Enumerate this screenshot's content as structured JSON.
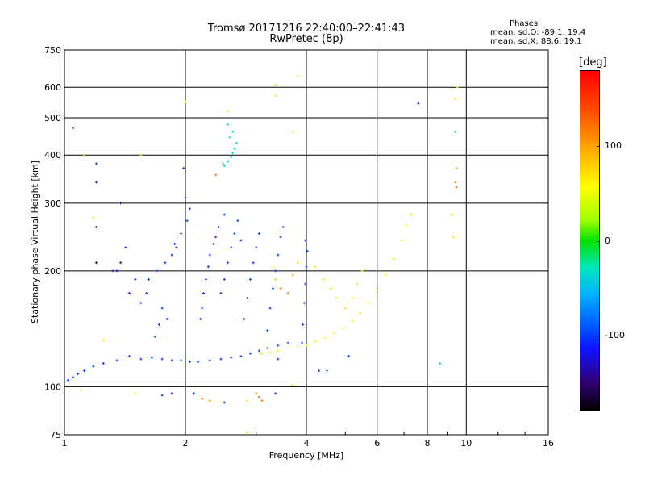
{
  "header": {
    "title_line1": "Tromsø 20171216 22:40:00–22:41:43",
    "title_line2": "RwPretec (8p)"
  },
  "phase_stats": {
    "heading": "Phases",
    "o_line": "mean, sd,O: -89.1, 19.4",
    "x_line": "mean, sd,X: 88.6, 19.1"
  },
  "colorbar": {
    "unit_label": "[deg]",
    "tick_labels": [
      "100",
      "0",
      "-100"
    ],
    "tick_values": [
      100,
      0,
      -100
    ],
    "range": [
      -180,
      180
    ]
  },
  "chart_data": {
    "type": "scatter",
    "xlabel": "Frequency [MHz]",
    "ylabel": "Stationary phase Virtual Height [km]",
    "x_scale": "log",
    "y_scale": "log",
    "xlim": [
      1,
      16
    ],
    "ylim": [
      75,
      750
    ],
    "x_ticks": [
      1,
      2,
      4,
      6,
      8,
      10,
      16
    ],
    "x_tick_labels": [
      "1",
      "2",
      "4",
      "6",
      "8",
      "10",
      "16"
    ],
    "y_ticks": [
      75,
      100,
      200,
      300,
      400,
      500,
      600,
      750
    ],
    "y_tick_labels": [
      "75",
      "100",
      "200",
      "300",
      "400",
      "500",
      "600",
      "750"
    ],
    "grid": true,
    "color_by": "phase_deg",
    "points": [
      [
        1.02,
        104,
        -80
      ],
      [
        1.05,
        106,
        -85
      ],
      [
        1.08,
        108,
        -90
      ],
      [
        1.12,
        110,
        -95
      ],
      [
        1.18,
        113,
        -90
      ],
      [
        1.25,
        115,
        -100
      ],
      [
        1.35,
        117,
        -95
      ],
      [
        1.45,
        120,
        -100
      ],
      [
        1.55,
        118,
        -95
      ],
      [
        1.65,
        119,
        -90
      ],
      [
        1.75,
        118,
        -100
      ],
      [
        1.85,
        117,
        -95
      ],
      [
        1.95,
        117,
        -100
      ],
      [
        2.05,
        116,
        -100
      ],
      [
        2.15,
        116,
        -95
      ],
      [
        2.3,
        117,
        -100
      ],
      [
        2.45,
        118,
        -95
      ],
      [
        2.6,
        119,
        -100
      ],
      [
        2.75,
        120,
        -90
      ],
      [
        2.9,
        122,
        -85
      ],
      [
        3.05,
        124,
        -90
      ],
      [
        3.2,
        126,
        -85
      ],
      [
        3.4,
        128,
        -80
      ],
      [
        3.6,
        130,
        -80
      ],
      [
        3.1,
        122,
        110
      ],
      [
        3.25,
        123,
        105
      ],
      [
        3.4,
        124,
        100
      ],
      [
        3.6,
        126,
        95
      ],
      [
        3.8,
        127,
        100
      ],
      [
        4.0,
        128,
        110
      ],
      [
        4.2,
        131,
        105
      ],
      [
        4.45,
        134,
        100
      ],
      [
        4.7,
        138,
        110
      ],
      [
        4.95,
        142,
        100
      ],
      [
        5.2,
        148,
        105
      ],
      [
        5.45,
        155,
        110
      ],
      [
        5.7,
        165,
        100
      ],
      [
        6.0,
        178,
        110
      ],
      [
        6.3,
        195,
        100
      ],
      [
        6.6,
        215,
        110
      ],
      [
        6.9,
        240,
        105
      ],
      [
        7.1,
        262,
        100
      ],
      [
        7.3,
        280,
        110
      ],
      [
        1.55,
        165,
        -100
      ],
      [
        1.6,
        175,
        -95
      ],
      [
        1.62,
        190,
        -100
      ],
      [
        1.7,
        200,
        -90
      ],
      [
        1.78,
        210,
        -100
      ],
      [
        1.85,
        220,
        -95
      ],
      [
        1.88,
        235,
        -100
      ],
      [
        1.95,
        250,
        -100
      ],
      [
        2.02,
        270,
        -95
      ],
      [
        2.05,
        290,
        -100
      ],
      [
        2.0,
        310,
        -120
      ],
      [
        1.98,
        370,
        -110
      ],
      [
        1.9,
        230,
        -140
      ],
      [
        1.75,
        160,
        -100
      ],
      [
        1.8,
        150,
        -110
      ],
      [
        1.72,
        145,
        -100
      ],
      [
        1.68,
        135,
        -105
      ],
      [
        1.5,
        190,
        -130
      ],
      [
        1.45,
        175,
        -120
      ],
      [
        1.38,
        210,
        -140
      ],
      [
        1.42,
        230,
        -120
      ],
      [
        1.32,
        200,
        -140
      ],
      [
        2.18,
        150,
        -100
      ],
      [
        2.2,
        160,
        -95
      ],
      [
        2.22,
        175,
        -100
      ],
      [
        2.25,
        190,
        -105
      ],
      [
        2.28,
        205,
        -100
      ],
      [
        2.3,
        220,
        -95
      ],
      [
        2.35,
        235,
        -100
      ],
      [
        2.38,
        245,
        -110
      ],
      [
        2.42,
        260,
        -100
      ],
      [
        2.5,
        280,
        -95
      ],
      [
        2.45,
        175,
        -90
      ],
      [
        2.5,
        190,
        -100
      ],
      [
        2.55,
        210,
        -95
      ],
      [
        2.6,
        230,
        -100
      ],
      [
        2.65,
        250,
        -95
      ],
      [
        2.7,
        270,
        -90
      ],
      [
        2.75,
        240,
        -100
      ],
      [
        2.5,
        375,
        -30
      ],
      [
        2.55,
        385,
        -25
      ],
      [
        2.6,
        395,
        -20
      ],
      [
        2.62,
        405,
        -25
      ],
      [
        2.65,
        415,
        -20
      ],
      [
        2.68,
        430,
        -30
      ],
      [
        2.58,
        445,
        -20
      ],
      [
        2.62,
        460,
        -25
      ],
      [
        2.55,
        480,
        -25
      ],
      [
        2.48,
        380,
        -20
      ],
      [
        2.8,
        150,
        -100
      ],
      [
        2.85,
        170,
        -95
      ],
      [
        2.9,
        190,
        -100
      ],
      [
        2.95,
        210,
        -100
      ],
      [
        3.0,
        230,
        -105
      ],
      [
        3.05,
        250,
        -100
      ],
      [
        3.2,
        140,
        -100
      ],
      [
        3.25,
        160,
        -110
      ],
      [
        3.3,
        180,
        -100
      ],
      [
        3.35,
        200,
        -95
      ],
      [
        3.4,
        220,
        -100
      ],
      [
        3.45,
        245,
        -110
      ],
      [
        3.5,
        260,
        -100
      ],
      [
        3.9,
        130,
        -100
      ],
      [
        3.92,
        145,
        -95
      ],
      [
        3.95,
        165,
        -100
      ],
      [
        3.98,
        185,
        -100
      ],
      [
        4.0,
        205,
        -95
      ],
      [
        4.02,
        225,
        -100
      ],
      [
        3.98,
        240,
        -120
      ],
      [
        3.3,
        205,
        110
      ],
      [
        3.35,
        190,
        120
      ],
      [
        3.45,
        180,
        150
      ],
      [
        3.6,
        175,
        150
      ],
      [
        3.7,
        195,
        140
      ],
      [
        3.8,
        210,
        110
      ],
      [
        4.2,
        205,
        110
      ],
      [
        4.4,
        190,
        120
      ],
      [
        4.6,
        180,
        115
      ],
      [
        4.75,
        170,
        110
      ],
      [
        5.0,
        160,
        110
      ],
      [
        5.2,
        170,
        105
      ],
      [
        5.35,
        185,
        110
      ],
      [
        5.5,
        200,
        105
      ],
      [
        3.35,
        610,
        110
      ],
      [
        3.35,
        570,
        110
      ],
      [
        3.8,
        640,
        110
      ],
      [
        3.7,
        460,
        110
      ],
      [
        9.4,
        560,
        110
      ],
      [
        9.5,
        600,
        105
      ],
      [
        9.4,
        460,
        -40
      ],
      [
        9.45,
        370,
        140
      ],
      [
        9.4,
        340,
        150
      ],
      [
        9.45,
        330,
        160
      ],
      [
        9.3,
        245,
        110
      ],
      [
        9.2,
        280,
        110
      ],
      [
        1.2,
        380,
        -90
      ],
      [
        1.2,
        340,
        -110
      ],
      [
        1.18,
        275,
        110
      ],
      [
        1.2,
        260,
        -130
      ],
      [
        1.2,
        210,
        -140
      ],
      [
        1.38,
        300,
        -130
      ],
      [
        1.35,
        200,
        -140
      ],
      [
        1.12,
        400,
        120
      ],
      [
        1.05,
        470,
        -130
      ],
      [
        1.55,
        400,
        40
      ],
      [
        2.0,
        550,
        110
      ],
      [
        2.38,
        355,
        150
      ],
      [
        2.55,
        520,
        110
      ],
      [
        1.75,
        95,
        -100
      ],
      [
        1.85,
        96,
        -110
      ],
      [
        2.1,
        96,
        -95
      ],
      [
        2.2,
        93,
        150
      ],
      [
        2.3,
        92,
        140
      ],
      [
        2.5,
        91,
        -100
      ],
      [
        2.85,
        92,
        110
      ],
      [
        3.0,
        96,
        150
      ],
      [
        3.05,
        94,
        160
      ],
      [
        3.1,
        92,
        150
      ],
      [
        3.35,
        96,
        -100
      ],
      [
        3.7,
        101,
        110
      ],
      [
        3.4,
        118,
        -90
      ],
      [
        4.3,
        110,
        -100
      ],
      [
        4.5,
        110,
        -100
      ],
      [
        5.1,
        120,
        -100
      ],
      [
        7.6,
        545,
        -130
      ],
      [
        8.6,
        115,
        -10
      ],
      [
        2.85,
        76,
        110
      ],
      [
        1.5,
        96,
        110
      ],
      [
        1.1,
        98,
        110
      ],
      [
        1.25,
        132,
        60
      ]
    ]
  }
}
